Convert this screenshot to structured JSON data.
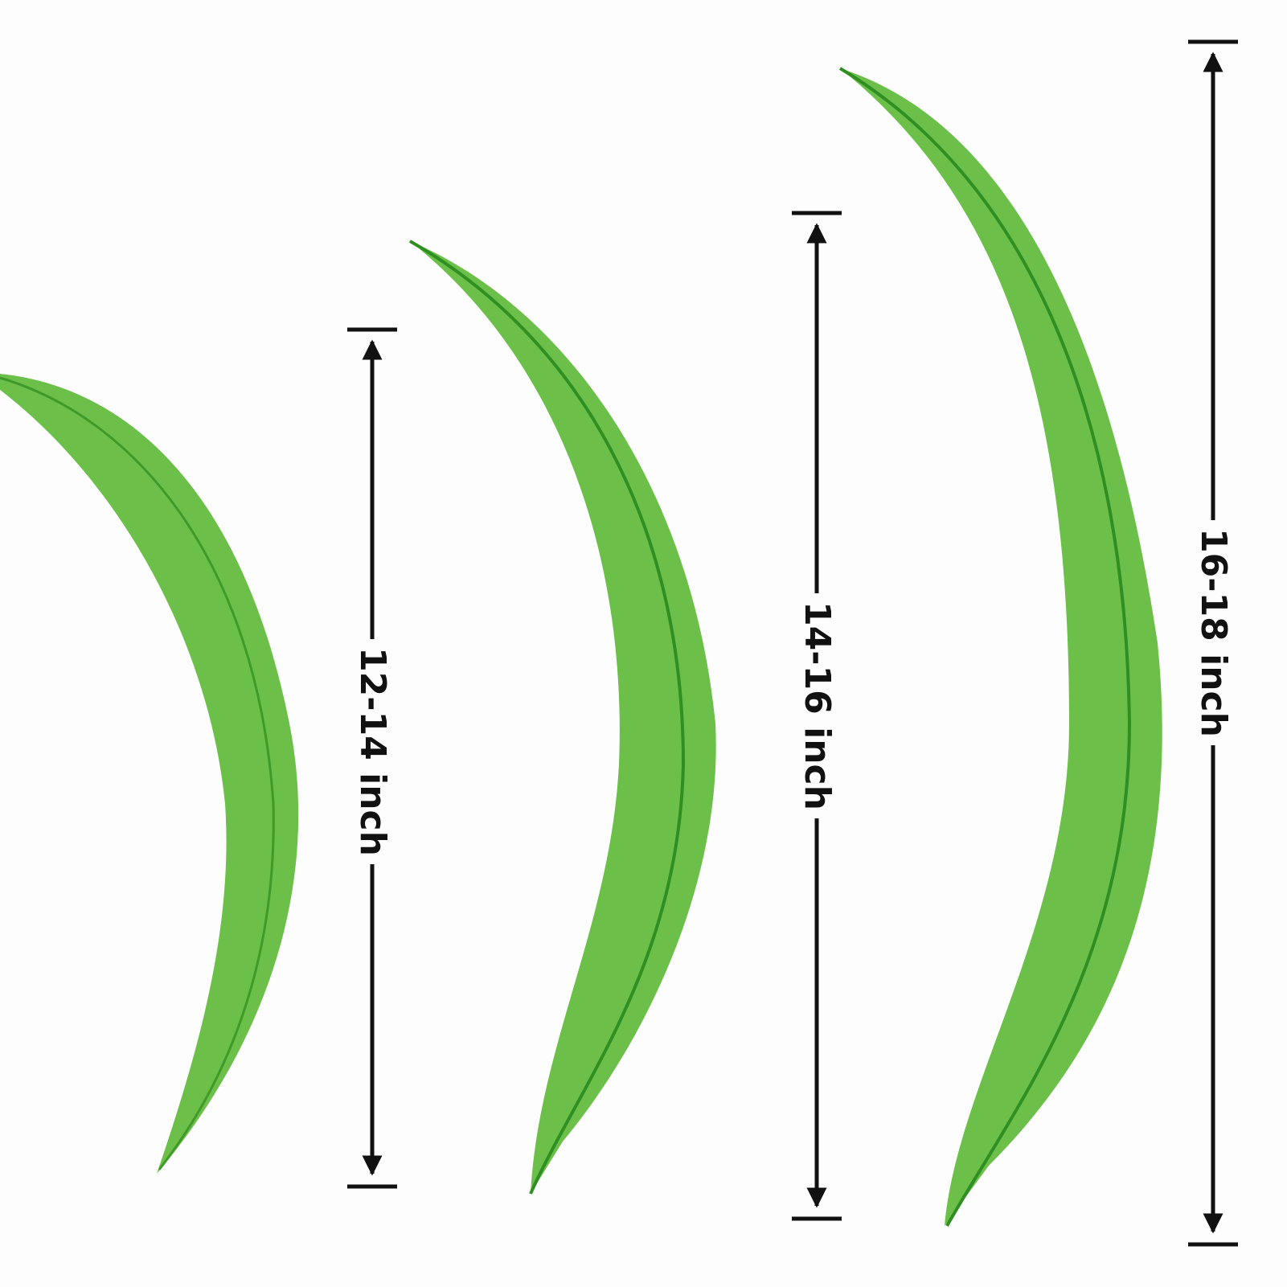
{
  "colors": {
    "feather": "#6cc04a",
    "feather_dark": "#3f9a2a",
    "marker": "#111111"
  },
  "measurements": [
    {
      "label": "12-14 inch"
    },
    {
      "label": "14-16 inch"
    },
    {
      "label": "16-18 inch"
    }
  ]
}
